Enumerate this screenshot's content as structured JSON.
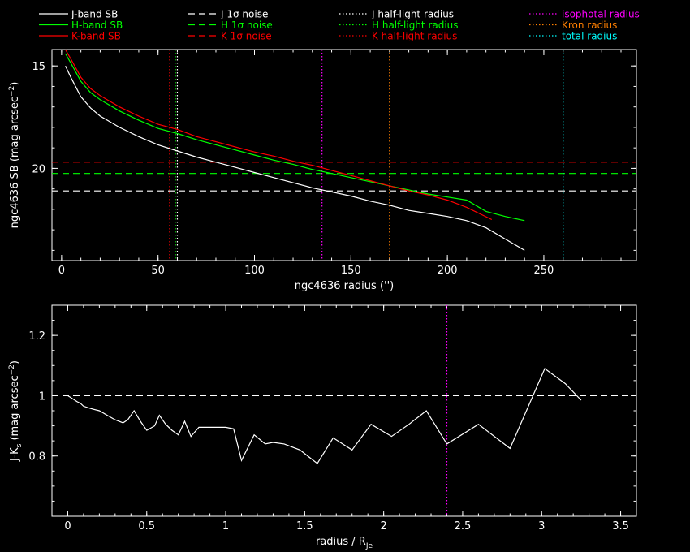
{
  "legend": [
    {
      "label": "J-band SB",
      "color": "#ffffff",
      "style": "solid"
    },
    {
      "label": "H-band SB",
      "color": "#00ff00",
      "style": "solid"
    },
    {
      "label": "K-band SB",
      "color": "#ff0000",
      "style": "solid"
    },
    {
      "label": "J 1σ noise",
      "color": "#ffffff",
      "style": "dashed"
    },
    {
      "label": "H 1σ noise",
      "color": "#00ff00",
      "style": "dashed"
    },
    {
      "label": "K 1σ noise",
      "color": "#ff0000",
      "style": "dashed"
    },
    {
      "label": "J half-light radius",
      "color": "#ffffff",
      "style": "dotted"
    },
    {
      "label": "H half-light radius",
      "color": "#00ff00",
      "style": "dotted"
    },
    {
      "label": "K half-light radius",
      "color": "#ff0000",
      "style": "dotted"
    },
    {
      "label": "isophotal radius",
      "color": "#ff00ff",
      "style": "dotted"
    },
    {
      "label": "Kron radius",
      "color": "#ff7f00",
      "style": "dotted"
    },
    {
      "label": "total radius",
      "color": "#00ffff",
      "style": "dotted"
    }
  ],
  "chart_data": [
    {
      "type": "line",
      "xlabel": "ngc4636 radius ('')",
      "ylabel": "ngc4636 SB (mag arcsec",
      "ylabel_sup": "−2",
      "ylabel_tail": ")",
      "xlim": [
        -5,
        298
      ],
      "ylim": [
        24.5,
        14.2
      ],
      "y_inverted": true,
      "xticks": [
        0,
        50,
        100,
        150,
        200,
        250
      ],
      "yticks": [
        15,
        20
      ],
      "series": [
        {
          "name": "J-band SB",
          "color": "#ffffff",
          "x": [
            2,
            5,
            10,
            15,
            20,
            30,
            40,
            50,
            60,
            70,
            80,
            90,
            100,
            110,
            120,
            130,
            140,
            150,
            160,
            170,
            180,
            190,
            200,
            210,
            220,
            230,
            240
          ],
          "y": [
            15.0,
            15.6,
            16.5,
            17.05,
            17.45,
            18.0,
            18.45,
            18.85,
            19.15,
            19.45,
            19.7,
            19.95,
            20.2,
            20.45,
            20.7,
            20.95,
            21.15,
            21.35,
            21.6,
            21.8,
            22.05,
            22.2,
            22.35,
            22.55,
            22.9,
            23.45,
            24.0
          ]
        },
        {
          "name": "H-band SB",
          "color": "#00ff00",
          "x": [
            2,
            5,
            10,
            15,
            20,
            30,
            40,
            50,
            60,
            70,
            80,
            90,
            100,
            110,
            120,
            130,
            140,
            150,
            160,
            170,
            180,
            190,
            200,
            210,
            220,
            230,
            240
          ],
          "y": [
            14.4,
            14.9,
            15.75,
            16.3,
            16.65,
            17.2,
            17.65,
            18.05,
            18.3,
            18.6,
            18.85,
            19.1,
            19.35,
            19.6,
            19.8,
            20.05,
            20.25,
            20.45,
            20.65,
            20.85,
            21.05,
            21.25,
            21.4,
            21.55,
            22.1,
            22.35,
            22.55
          ]
        },
        {
          "name": "K-band SB",
          "color": "#ff0000",
          "x": [
            2,
            5,
            10,
            15,
            20,
            30,
            40,
            50,
            60,
            70,
            80,
            90,
            100,
            110,
            120,
            130,
            140,
            150,
            160,
            170,
            180,
            190,
            200,
            210,
            223
          ],
          "y": [
            14.2,
            14.7,
            15.55,
            16.1,
            16.45,
            17.0,
            17.45,
            17.85,
            18.1,
            18.45,
            18.7,
            18.95,
            19.2,
            19.4,
            19.65,
            19.85,
            20.1,
            20.35,
            20.6,
            20.85,
            21.1,
            21.3,
            21.55,
            21.9,
            22.5
          ]
        }
      ],
      "noise_levels": [
        {
          "name": "J 1σ noise",
          "color": "#ffffff",
          "y": 21.1
        },
        {
          "name": "H 1σ noise",
          "color": "#00ff00",
          "y": 20.25
        },
        {
          "name": "K 1σ noise",
          "color": "#ff0000",
          "y": 19.7
        }
      ],
      "radii": [
        {
          "name": "J half-light radius",
          "color": "#ffffff",
          "x": 60
        },
        {
          "name": "H half-light radius",
          "color": "#00ff00",
          "x": 59
        },
        {
          "name": "K half-light radius",
          "color": "#ff0000",
          "x": 56
        },
        {
          "name": "isophotal radius",
          "color": "#ff00ff",
          "x": 135
        },
        {
          "name": "Kron radius",
          "color": "#ff7f00",
          "x": 170
        },
        {
          "name": "total radius",
          "color": "#00ffff",
          "x": 260
        }
      ]
    },
    {
      "type": "line",
      "xlabel": "radius / R",
      "xlabel_sub": "Je",
      "ylabel": "J-K",
      "ylabel_sub": "s",
      "ylabel_tail": " (mag arcsec",
      "ylabel_sup": "−2",
      "ylabel_tail2": ")",
      "xlim": [
        -0.1,
        3.6
      ],
      "ylim": [
        0.6,
        1.3
      ],
      "xticks": [
        0,
        0.5,
        1,
        1.5,
        2,
        2.5,
        3,
        3.5
      ],
      "xticklabels": [
        "0",
        "0.5",
        "1",
        "1.5",
        "2",
        "2.5",
        "3",
        "3.5"
      ],
      "yticks": [
        0.8,
        1,
        1.2
      ],
      "yticklabels": [
        "0.8",
        "1",
        "1.2"
      ],
      "series": [
        {
          "name": "J-K",
          "color": "#ffffff",
          "x": [
            0,
            0.03,
            0.06,
            0.08,
            0.1,
            0.13,
            0.16,
            0.2,
            0.25,
            0.3,
            0.35,
            0.38,
            0.42,
            0.46,
            0.5,
            0.55,
            0.58,
            0.62,
            0.66,
            0.7,
            0.74,
            0.78,
            0.83,
            0.9,
            1.0,
            1.05,
            1.1,
            1.18,
            1.25,
            1.3,
            1.37,
            1.47,
            1.58,
            1.68,
            1.8,
            1.92,
            2.05,
            2.16,
            2.27,
            2.4,
            2.6,
            2.8,
            3.02,
            3.15,
            3.25
          ],
          "y": [
            1.0,
            0.99,
            0.98,
            0.975,
            0.965,
            0.96,
            0.955,
            0.95,
            0.935,
            0.92,
            0.91,
            0.92,
            0.95,
            0.915,
            0.885,
            0.9,
            0.935,
            0.905,
            0.885,
            0.87,
            0.915,
            0.865,
            0.895,
            0.895,
            0.895,
            0.89,
            0.785,
            0.87,
            0.84,
            0.845,
            0.84,
            0.82,
            0.775,
            0.86,
            0.82,
            0.905,
            0.865,
            0.905,
            0.95,
            0.84,
            0.905,
            0.825,
            1.09,
            1.04,
            0.985
          ]
        }
      ],
      "reference_line": {
        "y": 1.0,
        "color": "#ffffff",
        "style": "dashed"
      },
      "radii": [
        {
          "name": "isophotal radius",
          "color": "#ff00ff",
          "x": 2.4
        }
      ]
    }
  ]
}
